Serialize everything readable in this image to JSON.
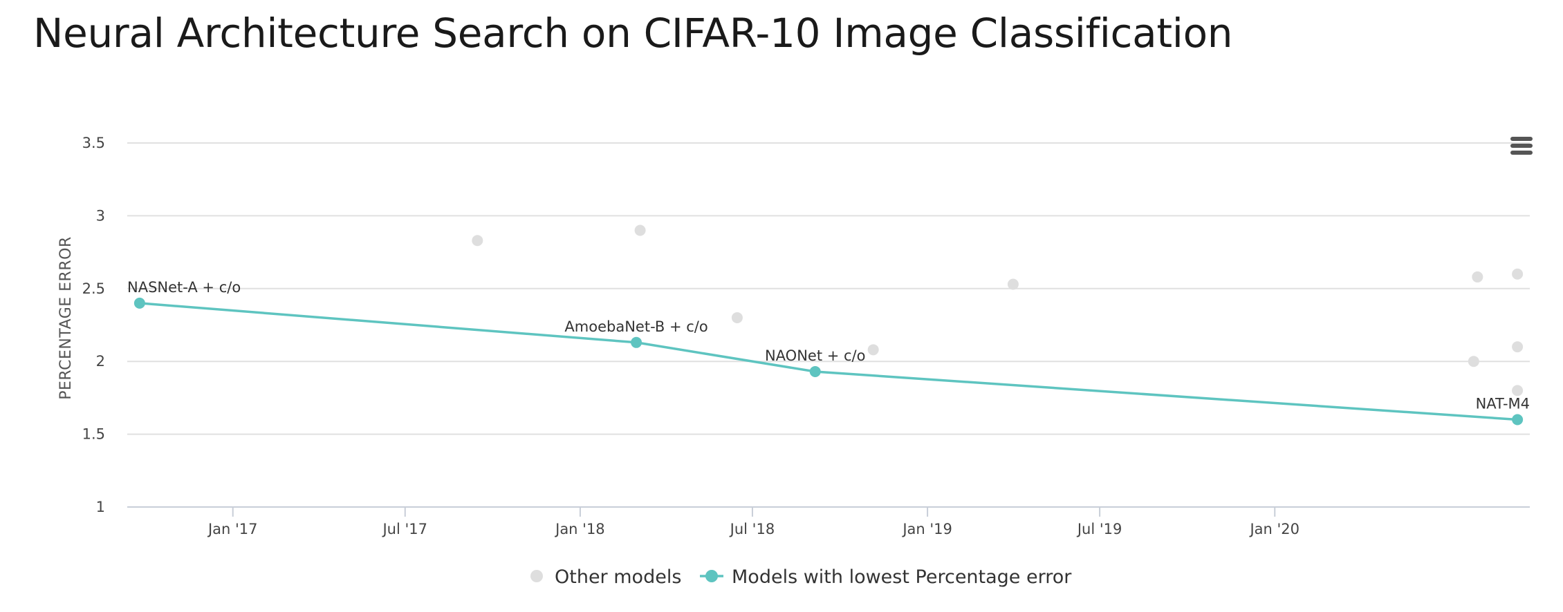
{
  "title": "Neural Architecture Search on CIFAR-10 Image Classification",
  "chart_data": {
    "type": "scatter",
    "title": "Neural Architecture Search on CIFAR-10 Image Classification",
    "xlabel": "",
    "ylabel": "PERCENTAGE ERROR",
    "ylim": [
      1,
      3.5
    ],
    "yticks": [
      1,
      1.5,
      2,
      2.5,
      3,
      3.5
    ],
    "ytick_labels": [
      "1",
      "1.5",
      "2",
      "2.5",
      "3",
      "3.5"
    ],
    "xlim": [
      "2016-09-12",
      "2020-09-25"
    ],
    "xticks": [
      "2017-01-01",
      "2017-07-01",
      "2018-01-01",
      "2018-07-01",
      "2019-01-01",
      "2019-07-01",
      "2020-01-01"
    ],
    "xtick_labels": [
      "Jan '17",
      "Jul '17",
      "Jan '18",
      "Jul '18",
      "Jan '19",
      "Jul '19",
      "Jan '20"
    ],
    "grid": true,
    "legend_position": "bottom-center",
    "series": [
      {
        "name": "Other models",
        "color": "#dedede",
        "mode": "markers",
        "points": [
          {
            "x": "2017-09-15",
            "y": 2.83
          },
          {
            "x": "2018-03-05",
            "y": 2.9
          },
          {
            "x": "2018-06-15",
            "y": 2.3
          },
          {
            "x": "2018-11-05",
            "y": 2.08
          },
          {
            "x": "2019-04-01",
            "y": 2.53
          },
          {
            "x": "2020-08-01",
            "y": 2.58
          },
          {
            "x": "2020-09-12",
            "y": 2.6
          },
          {
            "x": "2020-07-28",
            "y": 2.0
          },
          {
            "x": "2020-09-12",
            "y": 2.1
          },
          {
            "x": "2020-09-12",
            "y": 1.8
          }
        ]
      },
      {
        "name": "Models with lowest Percentage error",
        "color": "#5ec4c0",
        "mode": "lines+markers",
        "points": [
          {
            "x": "2016-09-25",
            "y": 2.4,
            "label": "NASNet-A + c/o"
          },
          {
            "x": "2018-03-01",
            "y": 2.13,
            "label": "AmoebaNet-B + c/o"
          },
          {
            "x": "2018-09-05",
            "y": 1.93,
            "label": "NAONet + c/o"
          },
          {
            "x": "2020-09-12",
            "y": 1.6,
            "label": "NAT-M4"
          }
        ]
      }
    ]
  },
  "menu": {
    "icon": "hamburger-menu-icon"
  }
}
